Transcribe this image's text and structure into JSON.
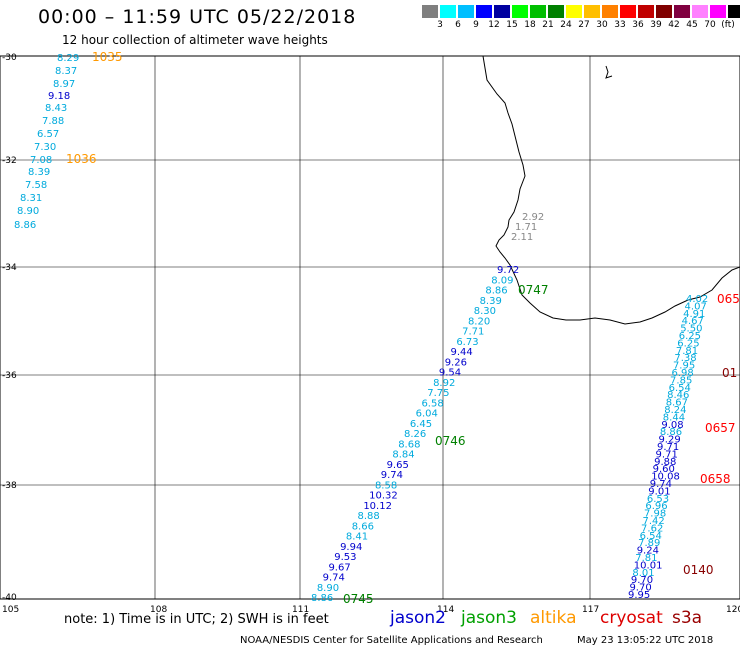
{
  "header": {
    "title": "00:00 – 11:59 UTC 05/22/2018",
    "subtitle": "12 hour collection of altimeter wave heights"
  },
  "legend": {
    "colors": [
      "#7f7f7f",
      "#00ffff",
      "#00bfff",
      "#0000ff",
      "#0000a0",
      "#00ff00",
      "#00bf00",
      "#008000",
      "#ffff00",
      "#ffbf00",
      "#ff8000",
      "#ff0000",
      "#c00000",
      "#800000",
      "#800040",
      "#ff80ff",
      "#ff00ff",
      "#000000"
    ],
    "labels": [
      "3",
      "6",
      "9",
      "12",
      "15",
      "18",
      "21",
      "24",
      "27",
      "30",
      "33",
      "36",
      "39",
      "42",
      "45",
      "70",
      "(ft)"
    ]
  },
  "axes": {
    "lat_labels": [
      "-30",
      "-32",
      "-34",
      "-36",
      "-38",
      "-40"
    ],
    "lon_labels": [
      "105",
      "108",
      "111",
      "114",
      "117",
      "120"
    ]
  },
  "footer": {
    "note": "note: 1) Time is in UTC; 2) SWH is in feet",
    "satellites": [
      "jason2",
      "jason3",
      "altika",
      "cryosat",
      "s3a"
    ],
    "credit": "NOAA/NESDIS Center for Satellite Applications and Research",
    "timestamp": "May 23 13:05:22 UTC 2018"
  },
  "tracks": [
    {
      "name": "altika-west",
      "time_labels": [
        {
          "text": "1035",
          "color": "#ff9900"
        },
        {
          "text": "1036",
          "color": "#ff9900"
        }
      ],
      "values": [
        "8.29",
        "8.37",
        "8.97",
        "9.18",
        "8.43",
        "7.88",
        "6.57",
        "7.30",
        "7.08",
        "8.39",
        "7.58",
        "8.31",
        "8.90",
        "8.86"
      ]
    },
    {
      "name": "jason3-central",
      "time_labels": [
        {
          "text": "0747",
          "color": "#008000"
        },
        {
          "text": "0746",
          "color": "#008000"
        },
        {
          "text": "0745",
          "color": "#008000"
        }
      ],
      "values": [
        "9.72",
        "8.09",
        "8.86",
        "8.39",
        "8.30",
        "8.20",
        "7.71",
        "6.73",
        "9.44",
        "9.26",
        "9.54",
        "8.92",
        "7.75",
        "6.58",
        "6.04",
        "6.45",
        "8.26",
        "8.68",
        "8.84",
        "9.65",
        "9.74",
        "8.58",
        "10.32",
        "10.12",
        "8.88",
        "8.66",
        "8.41",
        "9.94",
        "9.53",
        "9.67",
        "9.74",
        "8.90",
        "8.86"
      ]
    },
    {
      "name": "coast-gray",
      "values": [
        "2.92",
        "1.71",
        "2.11"
      ]
    },
    {
      "name": "s3a-east",
      "time_labels": [
        {
          "text": "0657",
          "color": "#ff0000"
        },
        {
          "text": "0658",
          "color": "#ff0000"
        },
        {
          "text": "0140",
          "color": "#880000"
        },
        {
          "text": "065",
          "color": "#ff0000"
        },
        {
          "text": "01",
          "color": "#880000"
        }
      ],
      "values": [
        "4.02",
        "4.07",
        "4.91",
        "4.67",
        "5.50",
        "6.25",
        "6.25",
        "7.81",
        "7.38",
        "7.95",
        "6.98",
        "7.85",
        "6.54",
        "8.46",
        "8.67",
        "8.24",
        "8.44",
        "9.08",
        "8.86",
        "9.29",
        "9.71",
        "9.71",
        "9.88",
        "9.60",
        "10.08",
        "9.74",
        "9.01",
        "6.53",
        "6.96",
        "7.98",
        "7.42",
        "7.62",
        "6.54",
        "7.89",
        "9.24",
        "7.81",
        "10.01",
        "8.01",
        "9.70",
        "9.70",
        "9.95"
      ]
    }
  ]
}
